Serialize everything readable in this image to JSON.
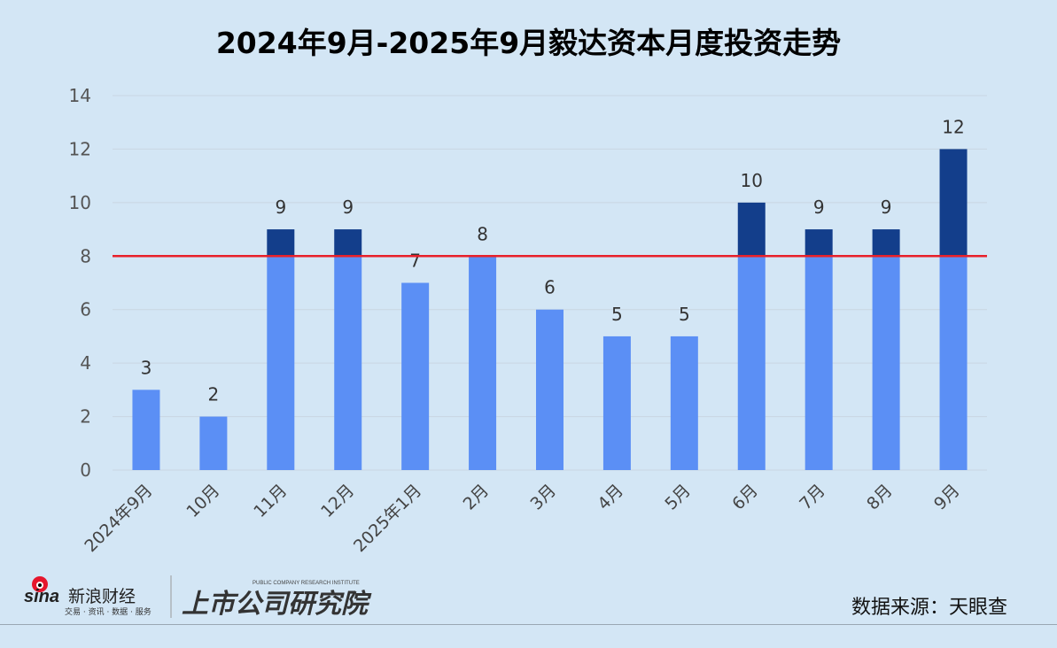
{
  "chart_data": {
    "type": "bar",
    "title": "2024年9月-2025年9月毅达资本月度投资走势",
    "categories": [
      "2024年9月",
      "10月",
      "11月",
      "12月",
      "2025年1月",
      "2月",
      "3月",
      "4月",
      "5月",
      "6月",
      "7月",
      "8月",
      "9月"
    ],
    "values": [
      3,
      2,
      9,
      9,
      7,
      8,
      6,
      5,
      5,
      10,
      9,
      9,
      12
    ],
    "ylim": [
      0,
      14
    ],
    "yticks": [
      "0",
      "2",
      "4",
      "6",
      "8",
      "10",
      "12",
      "14"
    ],
    "grid": true,
    "reference_line": 8,
    "colors": {
      "bar": "#5b8ff5",
      "bar_above_line": "#133e8b",
      "reference_line": "#e8202a",
      "background": "#d3e6f5"
    }
  },
  "source": "数据来源：天眼查",
  "logos": {
    "sina": "sina新浪财经",
    "sina_tagline": "交易 · 资讯 · 数据 · 服务",
    "institute": "上市公司研究院",
    "institute_en": "PUBLIC COMPANY RESEARCH INSTITUTE"
  }
}
